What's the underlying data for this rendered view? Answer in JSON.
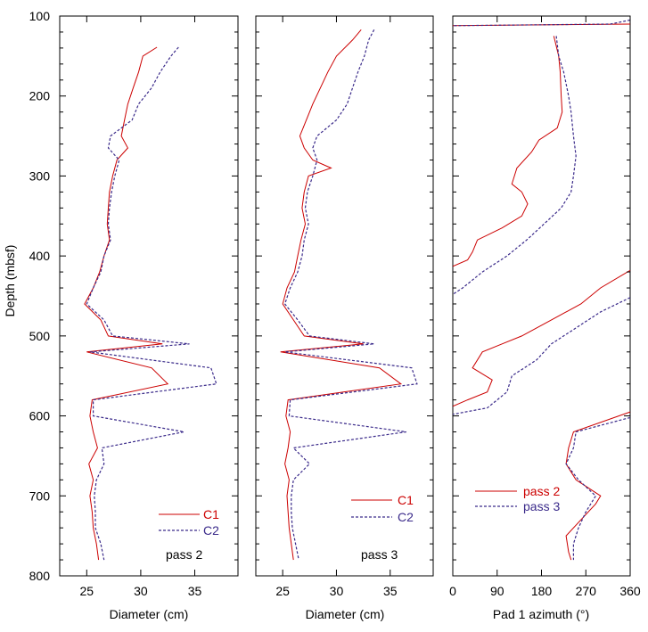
{
  "chart_data": [
    {
      "type": "line",
      "panel": "left",
      "xlabel": "Diameter (cm)",
      "ylabel": "Depth (mbsf)",
      "xlim": [
        22.5,
        39
      ],
      "ylim": [
        800,
        100
      ],
      "x_ticks": [
        "25",
        "30",
        "35"
      ],
      "y_ticks": [
        "100",
        "200",
        "300",
        "400",
        "500",
        "600",
        "700",
        "800"
      ],
      "annotation": "pass 2",
      "series": [
        {
          "name": "C1",
          "color": "#cc0000",
          "dash": "solid",
          "points": [
            [
              139,
              31.5
            ],
            [
              150,
              30.2
            ],
            [
              170,
              29.8
            ],
            [
              190,
              29.3
            ],
            [
              210,
              28.8
            ],
            [
              230,
              28.5
            ],
            [
              250,
              28.2
            ],
            [
              265,
              28.8
            ],
            [
              280,
              27.8
            ],
            [
              300,
              27.4
            ],
            [
              320,
              27.1
            ],
            [
              340,
              27.0
            ],
            [
              360,
              26.9
            ],
            [
              380,
              27.1
            ],
            [
              400,
              26.6
            ],
            [
              420,
              26.2
            ],
            [
              440,
              25.6
            ],
            [
              460,
              24.8
            ],
            [
              480,
              26.3
            ],
            [
              500,
              27.0
            ],
            [
              510,
              32.0
            ],
            [
              520,
              25.0
            ],
            [
              540,
              31.0
            ],
            [
              560,
              32.5
            ],
            [
              580,
              25.5
            ],
            [
              600,
              25.3
            ],
            [
              620,
              25.6
            ],
            [
              640,
              26.0
            ],
            [
              660,
              25.2
            ],
            [
              680,
              25.6
            ],
            [
              700,
              25.3
            ],
            [
              720,
              25.5
            ],
            [
              740,
              25.6
            ],
            [
              760,
              25.9
            ],
            [
              780,
              26.1
            ]
          ]
        },
        {
          "name": "C2",
          "color": "#3a2a8a",
          "dash": "dashed",
          "points": [
            [
              139,
              33.5
            ],
            [
              150,
              32.8
            ],
            [
              170,
              31.8
            ],
            [
              190,
              31.0
            ],
            [
              210,
              29.8
            ],
            [
              230,
              29.2
            ],
            [
              250,
              27.2
            ],
            [
              265,
              27.0
            ],
            [
              280,
              28.0
            ],
            [
              300,
              27.6
            ],
            [
              320,
              27.3
            ],
            [
              340,
              27.1
            ],
            [
              360,
              27.0
            ],
            [
              380,
              27.2
            ],
            [
              400,
              26.6
            ],
            [
              420,
              26.3
            ],
            [
              440,
              25.6
            ],
            [
              460,
              25.0
            ],
            [
              480,
              26.6
            ],
            [
              500,
              27.4
            ],
            [
              510,
              34.5
            ],
            [
              520,
              25.3
            ],
            [
              540,
              36.5
            ],
            [
              560,
              37.0
            ],
            [
              580,
              25.6
            ],
            [
              600,
              25.6
            ],
            [
              620,
              34.0
            ],
            [
              640,
              26.4
            ],
            [
              660,
              26.6
            ],
            [
              680,
              25.9
            ],
            [
              700,
              25.7
            ],
            [
              720,
              25.8
            ],
            [
              740,
              25.8
            ],
            [
              760,
              26.3
            ],
            [
              780,
              26.6
            ]
          ]
        }
      ]
    },
    {
      "type": "line",
      "panel": "middle",
      "xlabel": "Diameter (cm)",
      "xlim": [
        22.5,
        39
      ],
      "ylim": [
        800,
        100
      ],
      "x_ticks": [
        "25",
        "30",
        "35"
      ],
      "annotation": "pass 3",
      "series": [
        {
          "name": "C1",
          "color": "#cc0000",
          "dash": "solid",
          "points": [
            [
              117,
              32.3
            ],
            [
              130,
              31.5
            ],
            [
              150,
              30.0
            ],
            [
              170,
              29.2
            ],
            [
              190,
              28.5
            ],
            [
              210,
              27.8
            ],
            [
              230,
              27.2
            ],
            [
              250,
              26.6
            ],
            [
              265,
              27.0
            ],
            [
              280,
              27.8
            ],
            [
              290,
              29.5
            ],
            [
              300,
              27.4
            ],
            [
              320,
              27.0
            ],
            [
              340,
              26.8
            ],
            [
              360,
              27.1
            ],
            [
              380,
              26.7
            ],
            [
              400,
              26.4
            ],
            [
              420,
              26.1
            ],
            [
              440,
              25.4
            ],
            [
              460,
              25.0
            ],
            [
              480,
              26.0
            ],
            [
              500,
              27.0
            ],
            [
              510,
              32.5
            ],
            [
              520,
              24.8
            ],
            [
              540,
              34.0
            ],
            [
              560,
              36.0
            ],
            [
              580,
              25.5
            ],
            [
              600,
              25.3
            ],
            [
              620,
              25.7
            ],
            [
              640,
              25.5
            ],
            [
              660,
              25.2
            ],
            [
              680,
              25.6
            ],
            [
              700,
              25.4
            ],
            [
              720,
              25.5
            ],
            [
              740,
              25.6
            ],
            [
              760,
              25.8
            ],
            [
              780,
              26.0
            ]
          ]
        },
        {
          "name": "C2",
          "color": "#3a2a8a",
          "dash": "dashed",
          "points": [
            [
              117,
              33.5
            ],
            [
              130,
              33.0
            ],
            [
              150,
              32.6
            ],
            [
              170,
              32.0
            ],
            [
              190,
              31.5
            ],
            [
              210,
              31.0
            ],
            [
              230,
              30.0
            ],
            [
              250,
              28.2
            ],
            [
              265,
              27.8
            ],
            [
              280,
              28.2
            ],
            [
              300,
              27.8
            ],
            [
              320,
              27.3
            ],
            [
              340,
              27.1
            ],
            [
              360,
              27.4
            ],
            [
              380,
              27.0
            ],
            [
              400,
              26.8
            ],
            [
              420,
              26.4
            ],
            [
              440,
              25.7
            ],
            [
              460,
              25.2
            ],
            [
              480,
              26.4
            ],
            [
              500,
              27.5
            ],
            [
              510,
              33.5
            ],
            [
              520,
              25.2
            ],
            [
              540,
              37.0
            ],
            [
              560,
              37.5
            ],
            [
              580,
              25.7
            ],
            [
              600,
              25.6
            ],
            [
              620,
              36.5
            ],
            [
              640,
              26.0
            ],
            [
              660,
              27.5
            ],
            [
              680,
              26.0
            ],
            [
              700,
              25.8
            ],
            [
              720,
              25.8
            ],
            [
              740,
              25.9
            ],
            [
              760,
              26.2
            ],
            [
              780,
              26.5
            ]
          ]
        }
      ]
    },
    {
      "type": "line",
      "panel": "right",
      "xlabel": "Pad 1 azimuth (°)",
      "xlim": [
        0,
        360
      ],
      "ylim": [
        800,
        100
      ],
      "x_ticks": [
        "0",
        "90",
        "180",
        "270",
        "360"
      ],
      "series": [
        {
          "name": "pass 2",
          "color": "#cc0000",
          "dash": "solid",
          "points": [
            [
              [
                110,
                360
              ],
              [
                112,
                0
              ]
            ],
            [
              [
                125,
                205
              ],
              [
                150,
                215
              ],
              [
                170,
                218
              ],
              [
                200,
                220
              ],
              [
                220,
                222
              ],
              [
                240,
                212
              ],
              [
                255,
                175
              ],
              [
                270,
                160
              ],
              [
                290,
                130
              ],
              [
                310,
                120
              ],
              [
                320,
                140
              ],
              [
                335,
                152
              ],
              [
                350,
                140
              ],
              [
                365,
                100
              ],
              [
                380,
                50
              ],
              [
                395,
                40
              ],
              [
                405,
                30
              ],
              [
                413,
                0
              ]
            ],
            [
              [
                418,
                360
              ],
              [
                440,
                300
              ],
              [
                460,
                260
              ],
              [
                480,
                200
              ],
              [
                500,
                140
              ],
              [
                510,
                100
              ],
              [
                520,
                60
              ],
              [
                540,
                40
              ],
              [
                555,
                80
              ],
              [
                570,
                70
              ],
              [
                580,
                30
              ],
              [
                588,
                0
              ]
            ],
            [
              [
                595,
                360
              ],
              [
                620,
                245
              ],
              [
                640,
                235
              ],
              [
                660,
                230
              ],
              [
                680,
                250
              ],
              [
                700,
                300
              ],
              [
                710,
                290
              ],
              [
                730,
                260
              ],
              [
                750,
                230
              ],
              [
                770,
                235
              ],
              [
                780,
                240
              ]
            ]
          ]
        },
        {
          "name": "pass 3",
          "color": "#3a2a8a",
          "dash": "dashed",
          "points": [
            [
              [
                105,
                360
              ],
              [
                110,
                320
              ],
              [
                112,
                0
              ]
            ],
            [
              [
                125,
                210
              ],
              [
                150,
                215
              ],
              [
                170,
                225
              ],
              [
                200,
                235
              ],
              [
                220,
                240
              ],
              [
                250,
                245
              ],
              [
                275,
                250
              ],
              [
                300,
                245
              ],
              [
                320,
                240
              ],
              [
                340,
                220
              ],
              [
                360,
                185
              ],
              [
                380,
                150
              ],
              [
                400,
                110
              ],
              [
                420,
                60
              ],
              [
                440,
                20
              ],
              [
                448,
                0
              ]
            ],
            [
              [
                452,
                360
              ],
              [
                470,
                300
              ],
              [
                490,
                250
              ],
              [
                510,
                200
              ],
              [
                530,
                170
              ],
              [
                550,
                120
              ],
              [
                570,
                110
              ],
              [
                590,
                70
              ],
              [
                598,
                0
              ]
            ],
            [
              [
                602,
                360
              ],
              [
                620,
                250
              ],
              [
                640,
                245
              ],
              [
                660,
                230
              ],
              [
                680,
                255
              ],
              [
                700,
                290
              ],
              [
                720,
                270
              ],
              [
                740,
                255
              ],
              [
                760,
                245
              ],
              [
                780,
                245
              ]
            ]
          ]
        }
      ]
    }
  ]
}
